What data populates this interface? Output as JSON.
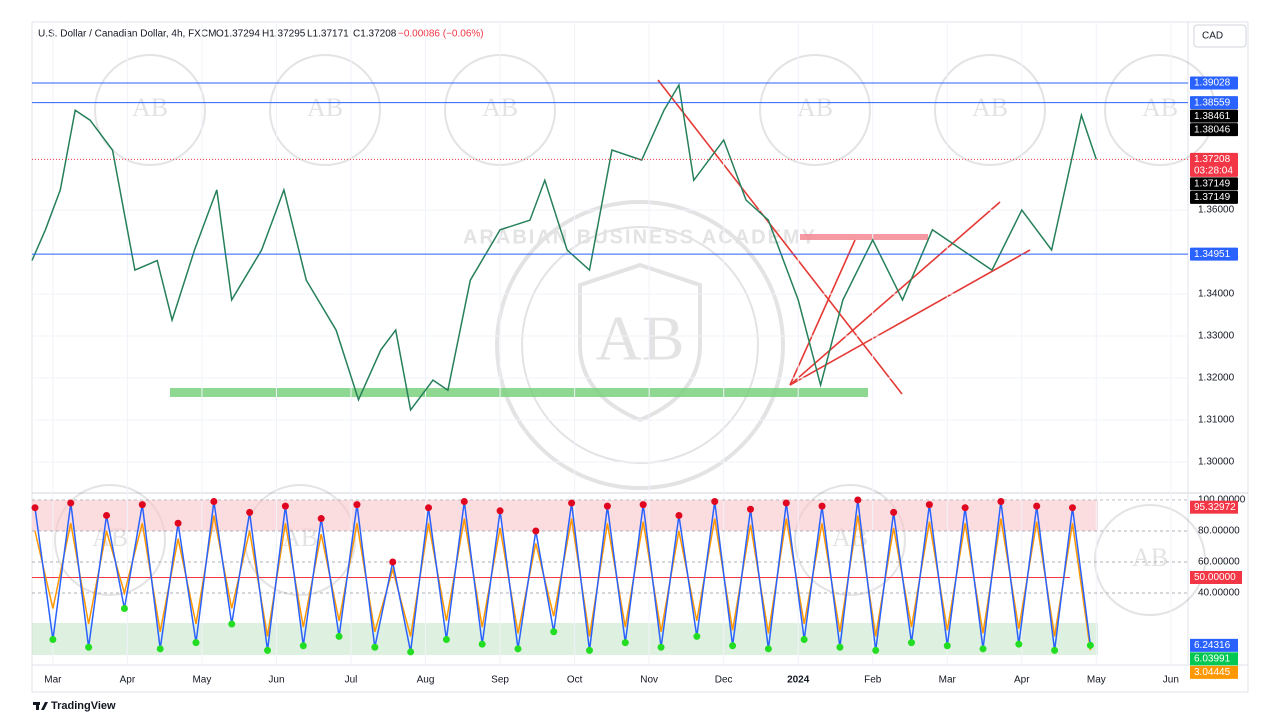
{
  "header": {
    "symbol": "U.S. Dollar / Canadian Dollar, 4h, FXCM",
    "open": "O1.37294",
    "high": "H1.37295",
    "low": "L1.37171",
    "close": "C1.37208",
    "change": "−0.00086 (−0.06%)",
    "currency": "CAD"
  },
  "footer": "TradingView",
  "watermark": {
    "text": "ARABIAN BUSINESS ACADEMY",
    "logo": "AB"
  },
  "chart_data": [
    {
      "type": "line",
      "color": "#26805a",
      "x": [
        -0.28,
        -0.1,
        0.1,
        0.3,
        0.5,
        0.8,
        1.1,
        1.4,
        1.6,
        1.9,
        2.2,
        2.4,
        2.8,
        3.1,
        3.4,
        3.8,
        4.1,
        4.4,
        4.6,
        4.8,
        5.1,
        5.3,
        5.6,
        6.0,
        6.4,
        6.6,
        6.9,
        7.2,
        7.5,
        7.9,
        8.2,
        8.4,
        8.6,
        9.0,
        9.3,
        9.6,
        10.0,
        10.3,
        10.6,
        11.0,
        11.4,
        11.8,
        12.2,
        12.6,
        13.0,
        13.4,
        13.8,
        14.0
      ],
      "values": [
        1.348,
        1.3553,
        1.3648,
        1.3838,
        1.3814,
        1.3743,
        1.3457,
        1.348,
        1.3338,
        1.3505,
        1.3648,
        1.3386,
        1.3505,
        1.3648,
        1.3433,
        1.3314,
        1.3148,
        1.3267,
        1.3314,
        1.3124,
        1.3195,
        1.3171,
        1.3433,
        1.3553,
        1.3576,
        1.3671,
        1.3505,
        1.3457,
        1.3743,
        1.3719,
        1.3838,
        1.3898,
        1.3671,
        1.3767,
        1.3624,
        1.3576,
        1.3386,
        1.3183,
        1.3386,
        1.3529,
        1.3386,
        1.3553,
        1.3505,
        1.3457,
        1.36,
        1.3505,
        1.3826,
        1.37208
      ],
      "xlim": [
        -0.28,
        15.23
      ],
      "xticks": [
        {
          "value": 0,
          "label": "Mar"
        },
        {
          "value": 1,
          "label": "Apr"
        },
        {
          "value": 2,
          "label": "May"
        },
        {
          "value": 3,
          "label": "Jun"
        },
        {
          "value": 4,
          "label": "Jul"
        },
        {
          "value": 5,
          "label": "Aug"
        },
        {
          "value": 6,
          "label": "Sep"
        },
        {
          "value": 7,
          "label": "Oct"
        },
        {
          "value": 8,
          "label": "Nov"
        },
        {
          "value": 9,
          "label": "Dec"
        },
        {
          "value": 10,
          "label": "2024"
        },
        {
          "value": 11,
          "label": "Feb"
        },
        {
          "value": 12,
          "label": "Mar"
        },
        {
          "value": 13,
          "label": "Apr"
        },
        {
          "value": 14,
          "label": "May"
        },
        {
          "value": 15,
          "label": "Jun"
        }
      ],
      "ylim": [
        1.2938,
        1.4048
      ],
      "yticks": [
        {
          "value": 1.36,
          "label": "1.36000"
        },
        {
          "value": 1.34,
          "label": "1.34000"
        },
        {
          "value": 1.33,
          "label": "1.33000"
        },
        {
          "value": 1.32,
          "label": "1.32000"
        },
        {
          "value": 1.31,
          "label": "1.31000"
        },
        {
          "value": 1.3,
          "label": "1.30000"
        }
      ],
      "price_labels": [
        {
          "value": 1.39028,
          "color": "#2962ff",
          "line": "solid"
        },
        {
          "value": 1.38559,
          "color": "#2962ff",
          "line": "solid"
        },
        {
          "value": 1.38461,
          "color": "#000000"
        },
        {
          "value": 1.38046,
          "color": "#000000"
        },
        {
          "value": 1.37208,
          "color": "#f23645",
          "line": "dotted",
          "countdown": "03:28:04"
        },
        {
          "value": 1.37149,
          "color": "#000000"
        },
        {
          "value": 1.37149,
          "color": "#000000"
        },
        {
          "value": 1.34951,
          "color": "#2962ff",
          "line": "solid"
        }
      ]
    },
    {
      "type": "oscillator",
      "x": [
        -0.24,
        0,
        0.24,
        0.48,
        0.72,
        0.96,
        1.2,
        1.44,
        1.68,
        1.92,
        2.16,
        2.4,
        2.64,
        2.88,
        3.12,
        3.36,
        3.6,
        3.84,
        4.08,
        4.32,
        4.56,
        4.8,
        5.04,
        5.28,
        5.52,
        5.76,
        6,
        6.24,
        6.48,
        6.72,
        6.96,
        7.2,
        7.44,
        7.68,
        7.92,
        8.16,
        8.4,
        8.64,
        8.88,
        9.12,
        9.36,
        9.6,
        9.84,
        10.08,
        10.32,
        10.56,
        10.8,
        11.04,
        11.28,
        11.52,
        11.76,
        12,
        12.24,
        12.48,
        12.72,
        12.96,
        13.2,
        13.44,
        13.68,
        13.92
      ],
      "series": [
        {
          "color": "#ff9800",
          "values": [
            80,
            30,
            85,
            20,
            80,
            40,
            85,
            15,
            75,
            20,
            90,
            30,
            80,
            12,
            85,
            18,
            78,
            22,
            85,
            15,
            55,
            12,
            85,
            22,
            88,
            18,
            82,
            14,
            72,
            25,
            88,
            12,
            85,
            18,
            86,
            15,
            80,
            22,
            88,
            16,
            84,
            14,
            88,
            20,
            85,
            15,
            90,
            12,
            82,
            18,
            86,
            16,
            85,
            14,
            88,
            17,
            86,
            12,
            85,
            3.04445
          ]
        },
        {
          "color": "#2962ff",
          "values": [
            95,
            10,
            98,
            5,
            90,
            30,
            97,
            4,
            85,
            8,
            99,
            20,
            92,
            3,
            96,
            6,
            88,
            12,
            97,
            5,
            60,
            2,
            95,
            10,
            99,
            7,
            93,
            4,
            80,
            15,
            98,
            3,
            96,
            8,
            97,
            5,
            90,
            12,
            99,
            6,
            94,
            4,
            98,
            10,
            96,
            5,
            100,
            3,
            92,
            8,
            97,
            6,
            95,
            4,
            99,
            7,
            96,
            3,
            95,
            6.24316
          ]
        }
      ],
      "xlim": [
        -0.28,
        15.23
      ],
      "ylim": [
        -3.2,
        101.9
      ],
      "yticks": [
        {
          "value": 100,
          "label": "100.00000"
        },
        {
          "value": 80,
          "label": "80.00000"
        },
        {
          "value": 60,
          "label": "60.00000"
        },
        {
          "value": 40,
          "label": "40.00000"
        }
      ],
      "midline": {
        "value": 50,
        "label": "50.00000",
        "color": "#f23645"
      },
      "value_labels": [
        {
          "value": 95.32972,
          "color": "#f23645"
        },
        {
          "value": 6.24316,
          "color": "#2962ff"
        },
        {
          "value": 6.03991,
          "color": "#00c853"
        },
        {
          "value": 3.04445,
          "color": "#ff9800"
        }
      ]
    }
  ]
}
